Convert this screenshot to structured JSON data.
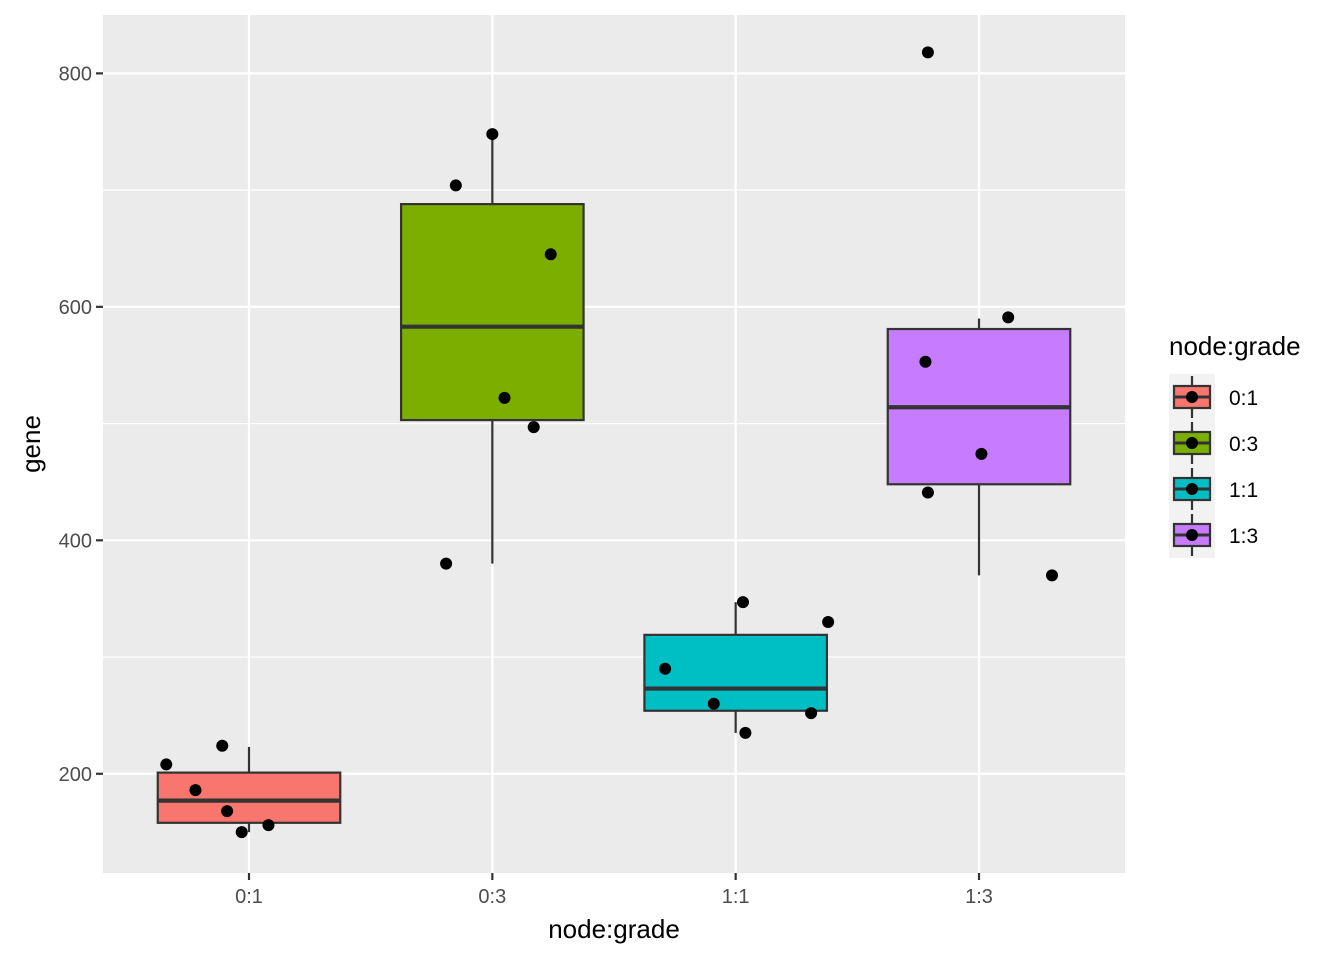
{
  "chart_data": {
    "type": "boxplot",
    "xlabel": "node:grade",
    "ylabel": "gene",
    "categories": [
      "0:1",
      "0:3",
      "1:1",
      "1:3"
    ],
    "ylim": [
      115,
      850
    ],
    "yticks": [
      200,
      400,
      600,
      800
    ],
    "grid": true,
    "legend": {
      "title": "node:grade",
      "position": "right",
      "entries": [
        "0:1",
        "0:3",
        "1:1",
        "1:3"
      ]
    },
    "colors": [
      "#F8766D",
      "#7CAE00",
      "#00BFC4",
      "#C77CFF"
    ],
    "boxes": [
      {
        "category": "0:1",
        "whisker_low": 150,
        "q1": 158,
        "median": 177,
        "q3": 201,
        "whisker_high": 223
      },
      {
        "category": "0:3",
        "whisker_low": 380,
        "q1": 503,
        "median": 583,
        "q3": 688,
        "whisker_high": 748
      },
      {
        "category": "1:1",
        "whisker_low": 235,
        "q1": 254,
        "median": 273,
        "q3": 319,
        "whisker_high": 347
      },
      {
        "category": "1:3",
        "whisker_low": 370,
        "q1": 448,
        "median": 514,
        "q3": 581,
        "whisker_high": 590
      }
    ],
    "points": [
      {
        "category": "0:1",
        "jitter": -0.34,
        "y": 208
      },
      {
        "category": "0:1",
        "jitter": -0.22,
        "y": 186
      },
      {
        "category": "0:1",
        "jitter": -0.11,
        "y": 224
      },
      {
        "category": "0:1",
        "jitter": -0.09,
        "y": 168
      },
      {
        "category": "0:1",
        "jitter": -0.03,
        "y": 150
      },
      {
        "category": "0:1",
        "jitter": 0.08,
        "y": 156
      },
      {
        "category": "0:3",
        "jitter": -0.19,
        "y": 380
      },
      {
        "category": "0:3",
        "jitter": -0.15,
        "y": 704
      },
      {
        "category": "0:3",
        "jitter": 0.0,
        "y": 748
      },
      {
        "category": "0:3",
        "jitter": 0.05,
        "y": 522
      },
      {
        "category": "0:3",
        "jitter": 0.17,
        "y": 497
      },
      {
        "category": "0:3",
        "jitter": 0.24,
        "y": 645
      },
      {
        "category": "1:1",
        "jitter": -0.29,
        "y": 290
      },
      {
        "category": "1:1",
        "jitter": -0.09,
        "y": 260
      },
      {
        "category": "1:1",
        "jitter": 0.03,
        "y": 347
      },
      {
        "category": "1:1",
        "jitter": 0.04,
        "y": 235
      },
      {
        "category": "1:1",
        "jitter": 0.31,
        "y": 252
      },
      {
        "category": "1:1",
        "jitter": 0.38,
        "y": 330
      },
      {
        "category": "1:3",
        "jitter": -0.22,
        "y": 553
      },
      {
        "category": "1:3",
        "jitter": -0.21,
        "y": 441
      },
      {
        "category": "1:3",
        "jitter": -0.21,
        "y": 818
      },
      {
        "category": "1:3",
        "jitter": 0.01,
        "y": 474
      },
      {
        "category": "1:3",
        "jitter": 0.12,
        "y": 591
      },
      {
        "category": "1:3",
        "jitter": 0.3,
        "y": 370
      }
    ]
  }
}
